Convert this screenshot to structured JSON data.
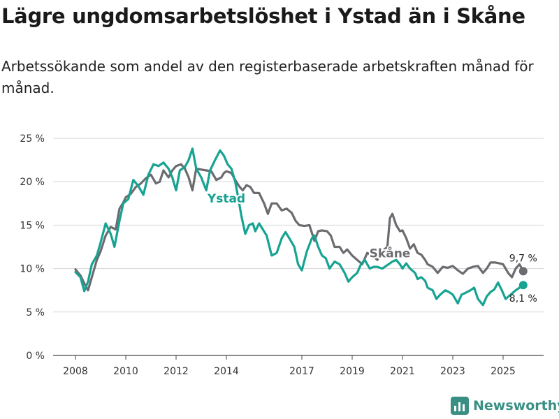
{
  "header": {
    "title": "Lägre ungdomsarbetslöshet i Ystad än i Skåne",
    "subtitle": "Arbetssökande som andel av den registerbaserade arbetskraften månad för månad."
  },
  "brand": {
    "name": "Newsworthy",
    "color": "#3a8f84"
  },
  "chart_data": {
    "type": "line",
    "title": "Lägre ungdomsarbetslöshet i Ystad än i Skåne",
    "xlabel": "",
    "ylabel": "",
    "xlim": [
      2007.7,
      2026.8
    ],
    "ylim": [
      0,
      25
    ],
    "y_ticks": [
      0,
      5,
      10,
      15,
      20,
      25
    ],
    "y_tick_labels": [
      "0 %",
      "5 %",
      "10 %",
      "15 %",
      "20 %",
      "25 %"
    ],
    "x_ticks": [
      2008,
      2010,
      2012,
      2014,
      2017,
      2019,
      2021,
      2023,
      2025
    ],
    "x_tick_labels": [
      "2008",
      "2010",
      "2012",
      "2014",
      "2017",
      "2019",
      "2021",
      "2023",
      "2025"
    ],
    "grid": true,
    "series": [
      {
        "name": "Skåne",
        "color": "#6b6b70",
        "end_label": "9,7 %",
        "points": [
          [
            2008.0,
            9.9
          ],
          [
            2008.2,
            9.2
          ],
          [
            2008.4,
            8.0
          ],
          [
            2008.5,
            7.5
          ],
          [
            2008.7,
            9.5
          ],
          [
            2008.85,
            11.0
          ],
          [
            2009.0,
            12.0
          ],
          [
            2009.2,
            13.8
          ],
          [
            2009.4,
            14.8
          ],
          [
            2009.6,
            14.5
          ],
          [
            2009.75,
            16.9
          ],
          [
            2009.9,
            17.6
          ],
          [
            2010.0,
            18.2
          ],
          [
            2010.2,
            18.6
          ],
          [
            2010.4,
            19.4
          ],
          [
            2010.6,
            19.8
          ],
          [
            2010.8,
            20.4
          ],
          [
            2011.0,
            20.8
          ],
          [
            2011.2,
            19.8
          ],
          [
            2011.35,
            20.0
          ],
          [
            2011.5,
            21.3
          ],
          [
            2011.7,
            20.5
          ],
          [
            2011.85,
            21.3
          ],
          [
            2012.0,
            21.8
          ],
          [
            2012.2,
            22.0
          ],
          [
            2012.35,
            21.5
          ],
          [
            2012.5,
            20.5
          ],
          [
            2012.65,
            19.0
          ],
          [
            2012.8,
            21.5
          ],
          [
            2013.0,
            21.4
          ],
          [
            2013.2,
            21.3
          ],
          [
            2013.4,
            21.2
          ],
          [
            2013.6,
            20.2
          ],
          [
            2013.8,
            20.5
          ],
          [
            2013.9,
            21.0
          ],
          [
            2014.0,
            21.2
          ],
          [
            2014.2,
            21.0
          ],
          [
            2014.35,
            20.2
          ],
          [
            2014.5,
            19.5
          ],
          [
            2014.65,
            19.0
          ],
          [
            2014.8,
            19.6
          ],
          [
            2014.95,
            19.4
          ],
          [
            2015.1,
            18.7
          ],
          [
            2015.3,
            18.7
          ],
          [
            2015.5,
            17.5
          ],
          [
            2015.65,
            16.3
          ],
          [
            2015.8,
            17.5
          ],
          [
            2016.0,
            17.5
          ],
          [
            2016.2,
            16.7
          ],
          [
            2016.4,
            16.9
          ],
          [
            2016.6,
            16.4
          ],
          [
            2016.75,
            15.5
          ],
          [
            2016.9,
            15.0
          ],
          [
            2017.1,
            14.9
          ],
          [
            2017.3,
            15.0
          ],
          [
            2017.5,
            13.2
          ],
          [
            2017.65,
            14.3
          ],
          [
            2017.8,
            14.4
          ],
          [
            2018.0,
            14.3
          ],
          [
            2018.15,
            13.8
          ],
          [
            2018.3,
            12.5
          ],
          [
            2018.5,
            12.5
          ],
          [
            2018.65,
            11.8
          ],
          [
            2018.8,
            12.2
          ],
          [
            2019.0,
            11.5
          ],
          [
            2019.2,
            11.0
          ],
          [
            2019.4,
            10.5
          ],
          [
            2019.6,
            11.8
          ],
          [
            2019.8,
            11.5
          ],
          [
            2020.0,
            11.0
          ],
          [
            2020.2,
            12.0
          ],
          [
            2020.4,
            12.5
          ],
          [
            2020.5,
            15.8
          ],
          [
            2020.6,
            16.3
          ],
          [
            2020.75,
            15.0
          ],
          [
            2020.9,
            14.3
          ],
          [
            2021.0,
            14.4
          ],
          [
            2021.15,
            13.5
          ],
          [
            2021.3,
            12.3
          ],
          [
            2021.45,
            12.8
          ],
          [
            2021.6,
            11.8
          ],
          [
            2021.75,
            11.6
          ],
          [
            2021.9,
            11.0
          ],
          [
            2022.0,
            10.5
          ],
          [
            2022.2,
            10.2
          ],
          [
            2022.4,
            9.5
          ],
          [
            2022.6,
            10.2
          ],
          [
            2022.8,
            10.1
          ],
          [
            2023.0,
            10.3
          ],
          [
            2023.2,
            9.8
          ],
          [
            2023.4,
            9.4
          ],
          [
            2023.6,
            10.0
          ],
          [
            2023.8,
            10.2
          ],
          [
            2024.0,
            10.3
          ],
          [
            2024.2,
            9.5
          ],
          [
            2024.35,
            10.0
          ],
          [
            2024.5,
            10.7
          ],
          [
            2024.7,
            10.7
          ],
          [
            2024.85,
            10.6
          ],
          [
            2025.0,
            10.5
          ],
          [
            2025.2,
            9.5
          ],
          [
            2025.35,
            9.0
          ],
          [
            2025.5,
            10.0
          ],
          [
            2025.65,
            10.5
          ],
          [
            2025.8,
            9.7
          ]
        ]
      },
      {
        "name": "Ystad",
        "color": "#17a392",
        "end_label": "8,1 %",
        "points": [
          [
            2008.0,
            9.6
          ],
          [
            2008.2,
            9.0
          ],
          [
            2008.35,
            7.4
          ],
          [
            2008.5,
            8.5
          ],
          [
            2008.65,
            10.5
          ],
          [
            2008.85,
            11.5
          ],
          [
            2009.0,
            13.0
          ],
          [
            2009.2,
            15.2
          ],
          [
            2009.4,
            14.0
          ],
          [
            2009.55,
            12.5
          ],
          [
            2009.75,
            15.5
          ],
          [
            2009.9,
            17.5
          ],
          [
            2010.1,
            18.0
          ],
          [
            2010.3,
            20.2
          ],
          [
            2010.5,
            19.5
          ],
          [
            2010.7,
            18.5
          ],
          [
            2010.9,
            20.8
          ],
          [
            2011.1,
            22.0
          ],
          [
            2011.3,
            21.8
          ],
          [
            2011.5,
            22.2
          ],
          [
            2011.7,
            21.5
          ],
          [
            2011.85,
            20.5
          ],
          [
            2012.0,
            19.0
          ],
          [
            2012.15,
            21.3
          ],
          [
            2012.35,
            21.7
          ],
          [
            2012.5,
            22.5
          ],
          [
            2012.65,
            23.8
          ],
          [
            2012.8,
            21.5
          ],
          [
            2013.0,
            20.5
          ],
          [
            2013.2,
            19.0
          ],
          [
            2013.35,
            21.3
          ],
          [
            2013.55,
            22.5
          ],
          [
            2013.75,
            23.6
          ],
          [
            2013.9,
            23.0
          ],
          [
            2014.05,
            22.0
          ],
          [
            2014.2,
            21.5
          ],
          [
            2014.35,
            20.0
          ],
          [
            2014.45,
            18.5
          ],
          [
            2014.6,
            16.0
          ],
          [
            2014.75,
            14.0
          ],
          [
            2014.9,
            15.0
          ],
          [
            2015.05,
            15.2
          ],
          [
            2015.15,
            14.3
          ],
          [
            2015.3,
            15.2
          ],
          [
            2015.45,
            14.5
          ],
          [
            2015.6,
            13.8
          ],
          [
            2015.8,
            11.5
          ],
          [
            2016.0,
            11.8
          ],
          [
            2016.2,
            13.5
          ],
          [
            2016.35,
            14.2
          ],
          [
            2016.5,
            13.5
          ],
          [
            2016.7,
            12.5
          ],
          [
            2016.85,
            10.5
          ],
          [
            2017.0,
            9.8
          ],
          [
            2017.2,
            12.0
          ],
          [
            2017.4,
            13.5
          ],
          [
            2017.5,
            13.8
          ],
          [
            2017.65,
            12.5
          ],
          [
            2017.8,
            11.5
          ],
          [
            2017.95,
            11.2
          ],
          [
            2018.1,
            10.0
          ],
          [
            2018.3,
            10.8
          ],
          [
            2018.5,
            10.5
          ],
          [
            2018.7,
            9.5
          ],
          [
            2018.85,
            8.5
          ],
          [
            2019.0,
            9.0
          ],
          [
            2019.2,
            9.5
          ],
          [
            2019.35,
            10.5
          ],
          [
            2019.5,
            11.0
          ],
          [
            2019.7,
            10.0
          ],
          [
            2019.85,
            10.2
          ],
          [
            2020.0,
            10.2
          ],
          [
            2020.2,
            10.0
          ],
          [
            2020.4,
            10.4
          ],
          [
            2020.6,
            10.8
          ],
          [
            2020.75,
            11.0
          ],
          [
            2020.9,
            10.5
          ],
          [
            2021.0,
            10.0
          ],
          [
            2021.15,
            10.6
          ],
          [
            2021.3,
            10.0
          ],
          [
            2021.5,
            9.5
          ],
          [
            2021.6,
            8.8
          ],
          [
            2021.75,
            9.0
          ],
          [
            2021.9,
            8.6
          ],
          [
            2022.0,
            7.8
          ],
          [
            2022.2,
            7.5
          ],
          [
            2022.35,
            6.5
          ],
          [
            2022.5,
            7.0
          ],
          [
            2022.7,
            7.5
          ],
          [
            2022.85,
            7.3
          ],
          [
            2023.0,
            7.0
          ],
          [
            2023.2,
            6.0
          ],
          [
            2023.35,
            7.0
          ],
          [
            2023.5,
            7.2
          ],
          [
            2023.7,
            7.5
          ],
          [
            2023.85,
            7.8
          ],
          [
            2024.0,
            6.5
          ],
          [
            2024.2,
            5.8
          ],
          [
            2024.35,
            6.8
          ],
          [
            2024.5,
            7.3
          ],
          [
            2024.65,
            7.6
          ],
          [
            2024.8,
            8.4
          ],
          [
            2024.95,
            7.5
          ],
          [
            2025.1,
            6.5
          ],
          [
            2025.3,
            7.0
          ],
          [
            2025.5,
            7.5
          ],
          [
            2025.65,
            7.8
          ],
          [
            2025.8,
            8.1
          ]
        ]
      }
    ]
  }
}
